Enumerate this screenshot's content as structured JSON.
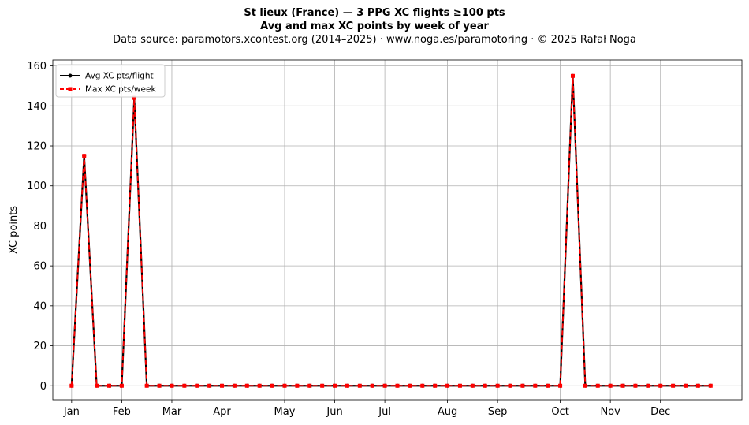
{
  "header": {
    "line1": "St lieux (France)  —  3 PPG XC flights ≥100 pts",
    "line2": "Avg and max XC points by week of year",
    "line3": "Data source: paramotors.xcontest.org (2014–2025)  ·  www.noga.es/paramotoring  ·  © 2025 Rafał Noga"
  },
  "chart_data": {
    "type": "line",
    "ylabel": "XC points",
    "xlabel": "",
    "ylim": [
      -7,
      163
    ],
    "xlim": [
      -1.5,
      53.5
    ],
    "yticks": [
      0,
      20,
      40,
      60,
      80,
      100,
      120,
      140,
      160
    ],
    "grid": true,
    "legend_position": "top-left",
    "month_ticks": [
      {
        "label": "Jan",
        "week": 0
      },
      {
        "label": "Feb",
        "week": 4
      },
      {
        "label": "Mar",
        "week": 8
      },
      {
        "label": "Apr",
        "week": 12
      },
      {
        "label": "May",
        "week": 17
      },
      {
        "label": "Jun",
        "week": 21
      },
      {
        "label": "Jul",
        "week": 25
      },
      {
        "label": "Aug",
        "week": 30
      },
      {
        "label": "Sep",
        "week": 34
      },
      {
        "label": "Oct",
        "week": 39
      },
      {
        "label": "Nov",
        "week": 43
      },
      {
        "label": "Dec",
        "week": 47
      }
    ],
    "x": [
      0,
      1,
      2,
      3,
      4,
      5,
      6,
      7,
      8,
      9,
      10,
      11,
      12,
      13,
      14,
      15,
      16,
      17,
      18,
      19,
      20,
      21,
      22,
      23,
      24,
      25,
      26,
      27,
      28,
      29,
      30,
      31,
      32,
      33,
      34,
      35,
      36,
      37,
      38,
      39,
      40,
      41,
      42,
      43,
      44,
      45,
      46,
      47,
      48,
      49,
      50,
      51
    ],
    "series": [
      {
        "name": "Avg XC pts/flight",
        "color": "#000000",
        "style": "solid",
        "marker": "circle",
        "values": [
          0,
          115,
          0,
          0,
          0,
          144,
          0,
          0,
          0,
          0,
          0,
          0,
          0,
          0,
          0,
          0,
          0,
          0,
          0,
          0,
          0,
          0,
          0,
          0,
          0,
          0,
          0,
          0,
          0,
          0,
          0,
          0,
          0,
          0,
          0,
          0,
          0,
          0,
          0,
          0,
          155,
          0,
          0,
          0,
          0,
          0,
          0,
          0,
          0,
          0,
          0,
          0
        ]
      },
      {
        "name": "Max XC pts/week",
        "color": "#ff0000",
        "style": "dashed",
        "marker": "square",
        "values": [
          0,
          115,
          0,
          0,
          0,
          144,
          0,
          0,
          0,
          0,
          0,
          0,
          0,
          0,
          0,
          0,
          0,
          0,
          0,
          0,
          0,
          0,
          0,
          0,
          0,
          0,
          0,
          0,
          0,
          0,
          0,
          0,
          0,
          0,
          0,
          0,
          0,
          0,
          0,
          0,
          155,
          0,
          0,
          0,
          0,
          0,
          0,
          0,
          0,
          0,
          0,
          0
        ]
      }
    ]
  }
}
